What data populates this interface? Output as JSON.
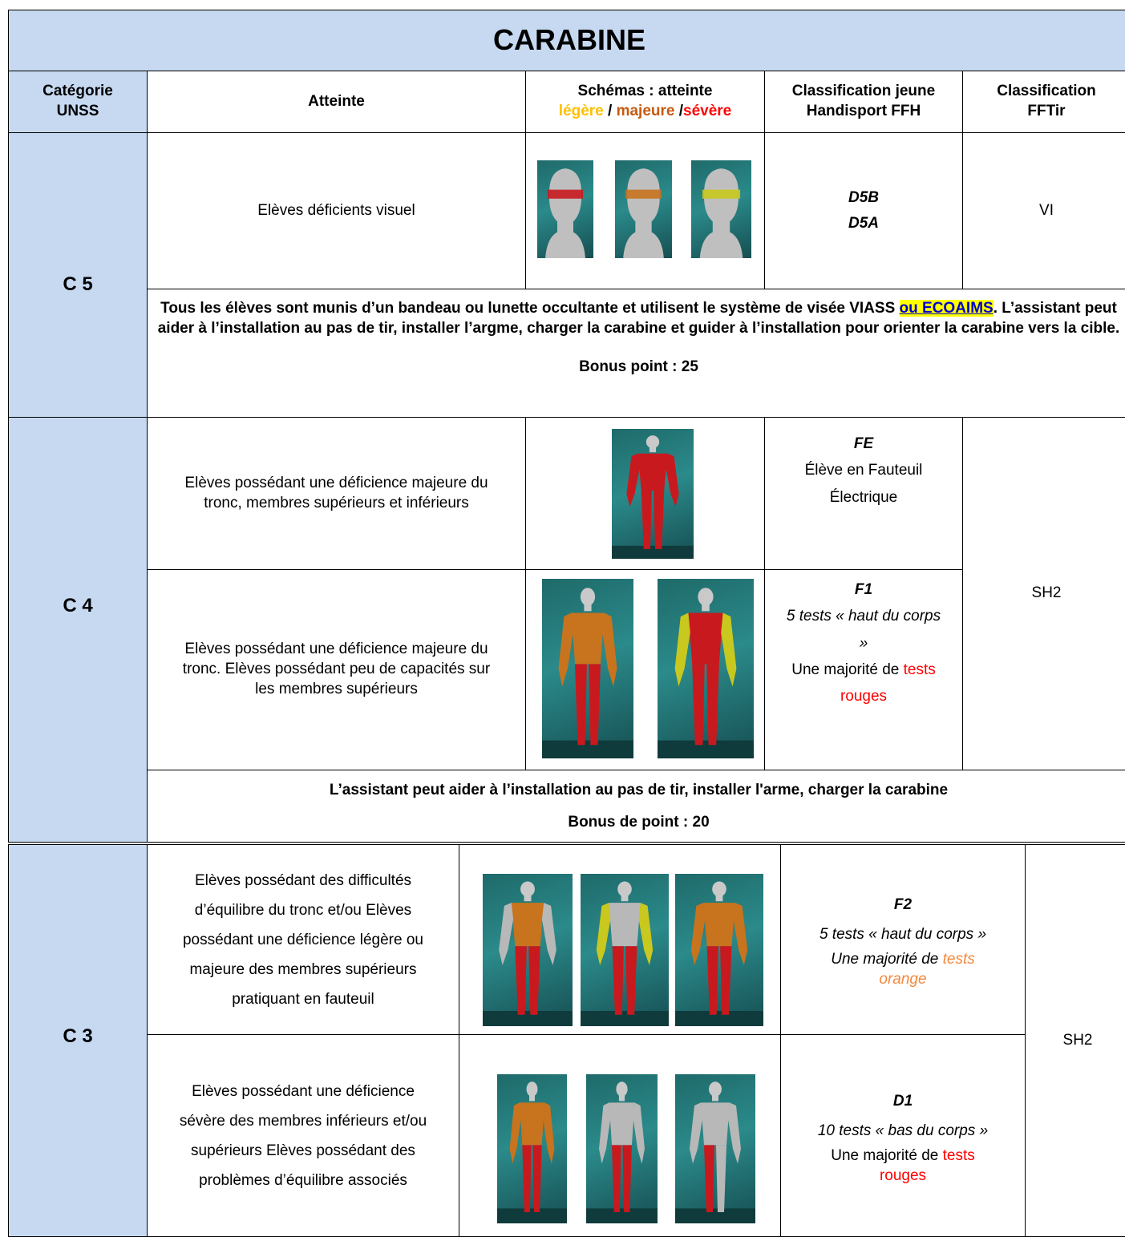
{
  "title": "CARABINE",
  "header": {
    "categorie": "Catégorie UNSS",
    "atteinte": "Atteinte",
    "schemas": "Schémas : atteinte",
    "legere": "légère",
    "sep1": " / ",
    "majeure": "majeure",
    "sep2": " /",
    "severe": "sévère",
    "ffh": "Classification jeune Handisport FFH",
    "fftir": "Classification FFTir"
  },
  "c5": {
    "label": "C 5",
    "atteinte": "Elèves déficients visuel",
    "ffh": [
      "D5B",
      "D5A"
    ],
    "fftir": "VI",
    "note": [
      "Tous les élèves sont munis d’un bandeau ou lunette occultante et utilisent le système de visée VIASS ",
      "ou ECOAIMS",
      ". L’assistant peut aider à l’installation au pas de tir, installer l’argme, charger la carabine et guider à l’installation pour orienter la carabine vers la cible."
    ],
    "bonus": "Bonus point : 25"
  },
  "c4": {
    "label": "C 4",
    "rows": [
      {
        "atteinte": "Elèves possédant une déficience majeure du tronc, membres supérieurs et inférieurs",
        "code": "FE",
        "desc": "Élève en Fauteuil Électrique"
      },
      {
        "atteinte": "Elèves possédant une déficience majeure du tronc. Elèves possédant peu de capacités sur les membres supérieurs",
        "code": "F1",
        "tests": "5 tests « haut du corps »",
        "majority": "Une majorité de ",
        "colored": "tests rouges"
      }
    ],
    "fftir": "SH2",
    "note": "L’assistant peut aider à l’installation au pas de tir, installer l'arme, charger la carabine",
    "bonus": "Bonus de point : 20"
  },
  "c3": {
    "label": "C 3",
    "rows": [
      {
        "atteinte": "Elèves possédant des difficultés d’équilibre du tronc et/ou Elèves possédant une déficience légère ou majeure des membres supérieurs pratiquant en fauteuil",
        "code": "F2",
        "tests": "5 tests « haut du corps »",
        "majority": "Une majorité de ",
        "colored": "tests orange"
      },
      {
        "atteinte": "Elèves possédant une déficience sévère des membres inférieurs et/ou supérieurs Elèves possédant des problèmes d’équilibre associés",
        "code": "D1",
        "tests": "10 tests « bas du corps »",
        "majority": "Une majorité de ",
        "colored": "tests rouges"
      }
    ],
    "fftir": "SH2"
  }
}
